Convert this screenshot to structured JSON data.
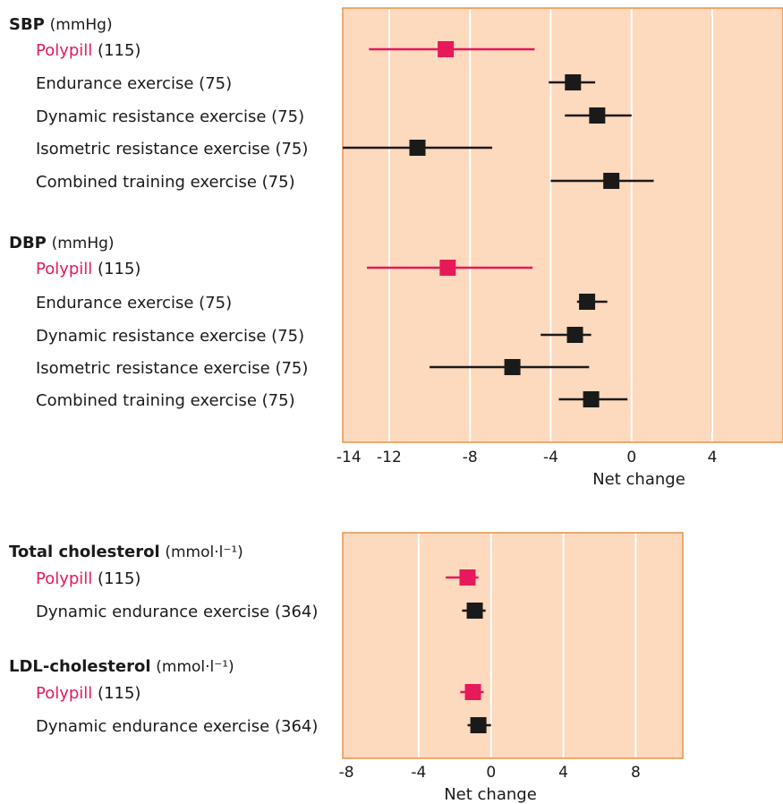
{
  "colors": {
    "panel_bg": "#fdd9bd",
    "panel_border": "#e8924a",
    "grid": "#ffffff",
    "polypill": "#e6195a",
    "exercise": "#1a1a1a"
  },
  "chart_data": [
    {
      "type": "forest",
      "xlabel": "Net change",
      "xlim": [
        -14.3,
        7.5
      ],
      "xticks": [
        -14,
        -12,
        -8,
        -4,
        0,
        4
      ],
      "grid": [
        -12,
        -8,
        -4,
        0,
        4
      ],
      "groups": [
        {
          "name": "SBP",
          "unit": "(mmHg)",
          "rows": [
            {
              "label": "Polypill",
              "n": "(115)",
              "kind": "polypill",
              "est": -9.2,
              "lo": -13.0,
              "hi": -4.8
            },
            {
              "label": "Endurance exercise",
              "n": "(75)",
              "kind": "exercise",
              "est": -2.9,
              "lo": -4.1,
              "hi": -1.8
            },
            {
              "label": "Dynamic resistance exercise",
              "n": "(75)",
              "kind": "exercise",
              "est": -1.7,
              "lo": -3.3,
              "hi": 0.0
            },
            {
              "label": "Isometric resistance exercise",
              "n": "(75)",
              "kind": "exercise",
              "est": -10.6,
              "lo": -14.3,
              "hi": -6.9
            },
            {
              "label": "Combined training exercise",
              "n": "(75)",
              "kind": "exercise",
              "est": -1.0,
              "lo": -4.0,
              "hi": 1.1
            }
          ]
        },
        {
          "name": "DBP",
          "unit": "(mmHg)",
          "rows": [
            {
              "label": "Polypill",
              "n": "(115)",
              "kind": "polypill",
              "est": -9.1,
              "lo": -13.1,
              "hi": -4.9
            },
            {
              "label": "Endurance exercise",
              "n": "(75)",
              "kind": "exercise",
              "est": -2.2,
              "lo": -2.7,
              "hi": -1.2
            },
            {
              "label": "Dynamic resistance exercise",
              "n": "(75)",
              "kind": "exercise",
              "est": -2.8,
              "lo": -4.5,
              "hi": -2.0
            },
            {
              "label": "Isometric resistance exercise",
              "n": "(75)",
              "kind": "exercise",
              "est": -5.9,
              "lo": -10.0,
              "hi": -2.1
            },
            {
              "label": "Combined training exercise",
              "n": "(75)",
              "kind": "exercise",
              "est": -2.0,
              "lo": -3.6,
              "hi": -0.2
            }
          ]
        }
      ]
    },
    {
      "type": "forest",
      "xlabel": "Net change",
      "xlim": [
        -8.2,
        10.6
      ],
      "xticks": [
        -8,
        -4,
        0,
        4,
        8
      ],
      "grid": [
        -4,
        0,
        4,
        8
      ],
      "groups": [
        {
          "name": "Total cholesterol",
          "unit": "(mmol·l⁻¹)",
          "rows": [
            {
              "label": "Polypill",
              "n": "(115)",
              "kind": "polypill",
              "est": -1.3,
              "lo": -2.5,
              "hi": -0.7
            },
            {
              "label": "Dynamic endurance exercise",
              "n": "(364)",
              "kind": "exercise",
              "est": -0.9,
              "lo": -1.6,
              "hi": -0.3
            }
          ]
        },
        {
          "name": "LDL-cholesterol",
          "unit": "(mmol·l⁻¹)",
          "rows": [
            {
              "label": "Polypill",
              "n": "(115)",
              "kind": "polypill",
              "est": -1.0,
              "lo": -1.7,
              "hi": -0.4
            },
            {
              "label": "Dynamic endurance exercise",
              "n": "(364)",
              "kind": "exercise",
              "est": -0.7,
              "lo": -1.3,
              "hi": 0.0
            }
          ]
        }
      ]
    }
  ]
}
